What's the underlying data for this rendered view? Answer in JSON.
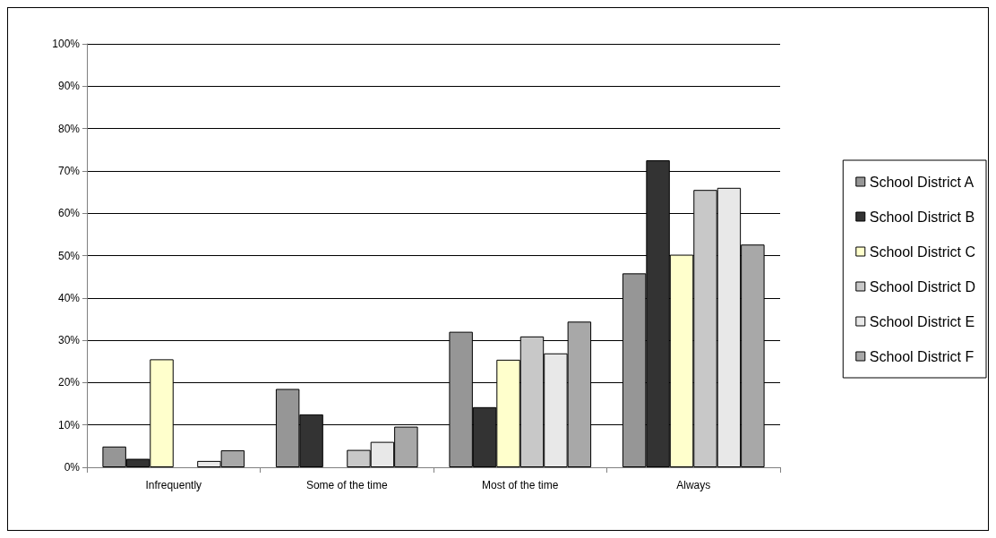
{
  "chart_data": {
    "type": "bar",
    "categories": [
      "Infrequently",
      "Some of the time",
      "Most of the time",
      "Always"
    ],
    "series": [
      {
        "name": "School District A",
        "color": "#969696",
        "values": [
          4.9,
          18.5,
          32.0,
          45.8
        ]
      },
      {
        "name": "School District B",
        "color": "#333333",
        "values": [
          2.0,
          12.5,
          14.2,
          72.5
        ]
      },
      {
        "name": "School District C",
        "color": "#ffffcc",
        "values": [
          25.5,
          0,
          25.4,
          50.2
        ]
      },
      {
        "name": "School District D",
        "color": "#c8c8c8",
        "values": [
          0,
          4.1,
          30.9,
          65.5
        ]
      },
      {
        "name": "School District E",
        "color": "#e8e8e8",
        "values": [
          1.5,
          6.0,
          26.9,
          66.0
        ]
      },
      {
        "name": "School District F",
        "color": "#a8a8a8",
        "values": [
          4.0,
          9.6,
          34.4,
          52.6
        ]
      }
    ],
    "ylim": [
      0,
      100
    ],
    "yticks": [
      {
        "value": 0,
        "label": "0%"
      },
      {
        "value": 10,
        "label": "10%"
      },
      {
        "value": 20,
        "label": "20%"
      },
      {
        "value": 30,
        "label": "30%"
      },
      {
        "value": 40,
        "label": "40%"
      },
      {
        "value": 50,
        "label": "50%"
      },
      {
        "value": 60,
        "label": "60%"
      },
      {
        "value": 70,
        "label": "70%"
      },
      {
        "value": 80,
        "label": "80%"
      },
      {
        "value": 90,
        "label": "90%"
      },
      {
        "value": 100,
        "label": "100%"
      }
    ],
    "grid": "y",
    "legend": "right"
  }
}
